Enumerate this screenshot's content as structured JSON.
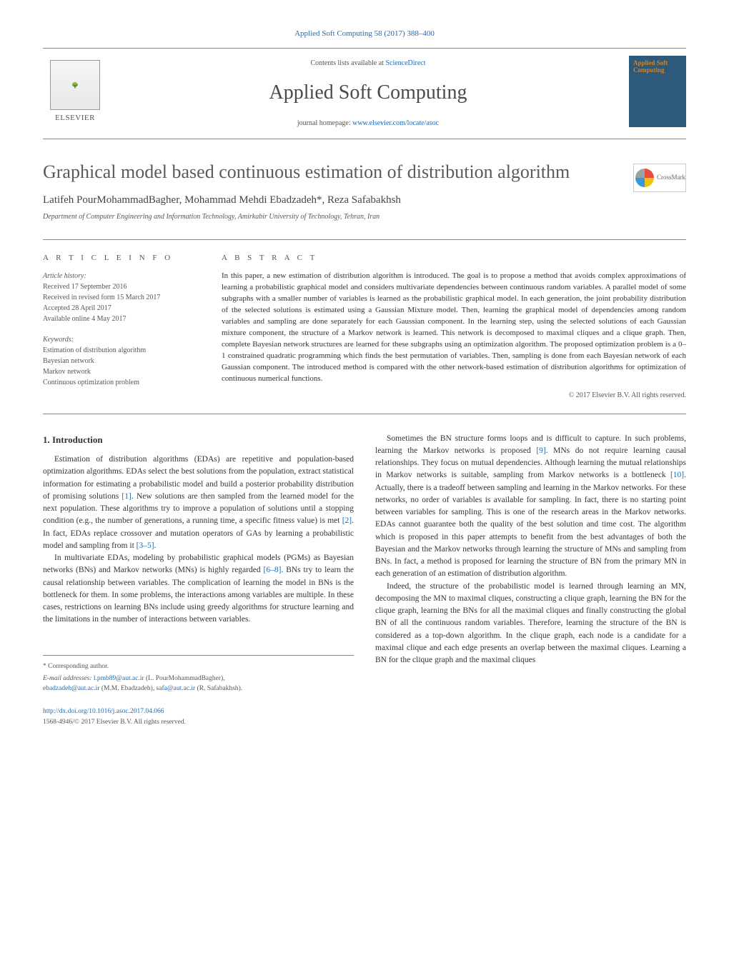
{
  "header": {
    "citation": "Applied Soft Computing 58 (2017) 388–400",
    "contents_prefix": "Contents lists available at ",
    "contents_link": "ScienceDirect",
    "journal_title": "Applied Soft Computing",
    "homepage_prefix": "journal homepage: ",
    "homepage_url": "www.elsevier.com/locate/asoc",
    "publisher_name": "ELSEVIER",
    "cover_text": "Applied Soft Computing"
  },
  "article": {
    "title": "Graphical model based continuous estimation of distribution algorithm",
    "crossmark_label": "CrossMark",
    "authors": "Latifeh PourMohammadBagher, Mohammad Mehdi Ebadzadeh*, Reza Safabakhsh",
    "affiliation": "Department of Computer Engineering and Information Technology, Amirkabir University of Technology, Tehran, Iran"
  },
  "info": {
    "section_label": "a r t i c l e   i n f o",
    "history_label": "Article history:",
    "received": "Received 17 September 2016",
    "revised": "Received in revised form 15 March 2017",
    "accepted": "Accepted 28 April 2017",
    "online": "Available online 4 May 2017",
    "keywords_label": "Keywords:",
    "kw1": "Estimation of distribution algorithm",
    "kw2": "Bayesian network",
    "kw3": "Markov network",
    "kw4": "Continuous optimization problem"
  },
  "abstract": {
    "section_label": "a b s t r a c t",
    "text": "In this paper, a new estimation of distribution algorithm is introduced. The goal is to propose a method that avoids complex approximations of learning a probabilistic graphical model and considers multivariate dependencies between continuous random variables. A parallel model of some subgraphs with a smaller number of variables is learned as the probabilistic graphical model. In each generation, the joint probability distribution of the selected solutions is estimated using a Gaussian Mixture model. Then, learning the graphical model of dependencies among random variables and sampling are done separately for each Gaussian component. In the learning step, using the selected solutions of each Gaussian mixture component, the structure of a Markov network is learned. This network is decomposed to maximal cliques and a clique graph. Then, complete Bayesian network structures are learned for these subgraphs using an optimization algorithm. The proposed optimization problem is a 0–1 constrained quadratic programming which finds the best permutation of variables. Then, sampling is done from each Bayesian network of each Gaussian component. The introduced method is compared with the other network-based estimation of distribution algorithms for optimization of continuous numerical functions.",
    "copyright": "© 2017 Elsevier B.V. All rights reserved."
  },
  "body": {
    "heading": "1. Introduction",
    "col1_p1": "Estimation of distribution algorithms (EDAs) are repetitive and population-based optimization algorithms. EDAs select the best solutions from the population, extract statistical information for estimating a probabilistic model and build a posterior probability distribution of promising solutions [1]. New solutions are then sampled from the learned model for the next population. These algorithms try to improve a population of solutions until a stopping condition (e.g., the number of generations, a running time, a specific fitness value) is met [2]. In fact, EDAs replace crossover and mutation operators of GAs by learning a probabilistic model and sampling from it [3–5].",
    "col1_p2": "In multivariate EDAs, modeling by probabilistic graphical models (PGMs) as Bayesian networks (BNs) and Markov networks (MNs) is highly regarded [6–8]. BNs try to learn the causal relationship between variables. The complication of learning the model in BNs is the bottleneck for them. In some problems, the interactions among variables are multiple. In these cases, restrictions on learning BNs include using greedy algorithms for structure learning and the limitations in the number of interactions between variables.",
    "col2_p1": "Sometimes the BN structure forms loops and is difficult to capture. In such problems, learning the Markov networks is proposed [9]. MNs do not require learning causal relationships. They focus on mutual dependencies. Although learning the mutual relationships in Markov networks is suitable, sampling from Markov networks is a bottleneck [10]. Actually, there is a tradeoff between sampling and learning in the Markov networks. For these networks, no order of variables is available for sampling. In fact, there is no starting point between variables for sampling. This is one of the research areas in the Markov networks. EDAs cannot guarantee both the quality of the best solution and time cost. The algorithm which is proposed in this paper attempts to benefit from the best advantages of both the Bayesian and the Markov networks through learning the structure of MNs and sampling from BNs. In fact, a method is proposed for learning the structure of BN from the primary MN in each generation of an estimation of distribution algorithm.",
    "col2_p2": "Indeed, the structure of the probabilistic model is learned through learning an MN, decomposing the MN to maximal cliques, constructing a clique graph, learning the BN for the clique graph, learning the BNs for all the maximal cliques and finally constructing the global BN of all the continuous random variables. Therefore, learning the structure of the BN is considered as a top-down algorithm. In the clique graph, each node is a candidate for a maximal clique and each edge presents an overlap between the maximal cliques. Learning a BN for the clique graph and the maximal cliques"
  },
  "footer": {
    "corresponding": "* Corresponding author.",
    "email_label": "E-mail addresses: ",
    "email1": "l.pmb89@aut.ac.ir",
    "email1_name": " (L. PourMohammadBagher),",
    "email2": "ebadzadeh@aut.ac.ir",
    "email2_name": " (M.M. Ebadzadeh), ",
    "email3": "safa@aut.ac.ir",
    "email3_name": " (R. Safabakhsh).",
    "doi": "http://dx.doi.org/10.1016/j.asoc.2017.04.066",
    "issn_line": "1568-4946/© 2017 Elsevier B.V. All rights reserved."
  },
  "colors": {
    "link": "#1a6bb8",
    "text": "#333333",
    "muted": "#555555",
    "border": "#888888",
    "cover_bg": "#2d5a7a",
    "cover_accent": "#d4812a"
  }
}
